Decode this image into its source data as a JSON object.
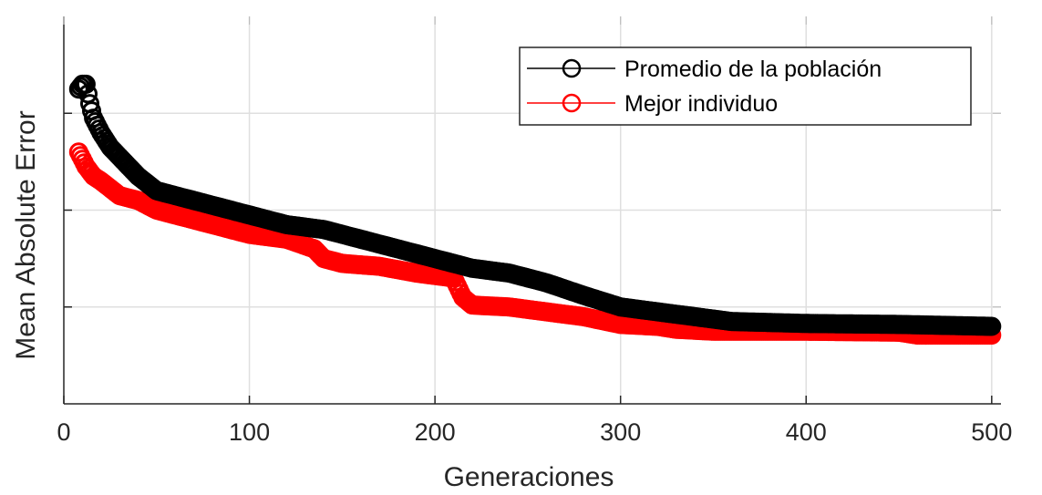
{
  "chart_data": {
    "type": "scatter",
    "title": "",
    "xlabel": "Generaciones",
    "ylabel": "Mean Absolute Error",
    "xlim": [
      0,
      505
    ],
    "ylim": [
      0,
      4
    ],
    "x_ticks": [
      0,
      100,
      200,
      300,
      400,
      500
    ],
    "x_tick_labels": [
      "0",
      "100",
      "200",
      "300",
      "400",
      "500"
    ],
    "y_ticks": [
      1,
      2,
      3
    ],
    "y_tick_labels": [],
    "grid": true,
    "legend_position": "top-right",
    "marker": "circle-open",
    "series": [
      {
        "name": "Promedio de la población",
        "color": "#000000",
        "points": [
          [
            8,
            3.25
          ],
          [
            10,
            3.3
          ],
          [
            12,
            3.3
          ],
          [
            14,
            3.1
          ],
          [
            16,
            2.95
          ],
          [
            20,
            2.8
          ],
          [
            25,
            2.65
          ],
          [
            30,
            2.55
          ],
          [
            40,
            2.35
          ],
          [
            50,
            2.2
          ],
          [
            60,
            2.15
          ],
          [
            80,
            2.05
          ],
          [
            100,
            1.95
          ],
          [
            120,
            1.85
          ],
          [
            140,
            1.8
          ],
          [
            160,
            1.7
          ],
          [
            180,
            1.6
          ],
          [
            200,
            1.5
          ],
          [
            220,
            1.4
          ],
          [
            240,
            1.35
          ],
          [
            260,
            1.25
          ],
          [
            280,
            1.12
          ],
          [
            300,
            1.0
          ],
          [
            320,
            0.95
          ],
          [
            340,
            0.9
          ],
          [
            360,
            0.85
          ],
          [
            400,
            0.83
          ],
          [
            450,
            0.82
          ],
          [
            500,
            0.8
          ]
        ]
      },
      {
        "name": "Mejor individuo",
        "color": "#ff0000",
        "points": [
          [
            8,
            2.6
          ],
          [
            12,
            2.45
          ],
          [
            16,
            2.35
          ],
          [
            20,
            2.3
          ],
          [
            30,
            2.15
          ],
          [
            40,
            2.1
          ],
          [
            50,
            2.0
          ],
          [
            60,
            1.95
          ],
          [
            80,
            1.85
          ],
          [
            100,
            1.75
          ],
          [
            120,
            1.7
          ],
          [
            135,
            1.6
          ],
          [
            140,
            1.5
          ],
          [
            150,
            1.45
          ],
          [
            170,
            1.42
          ],
          [
            190,
            1.35
          ],
          [
            210,
            1.3
          ],
          [
            215,
            1.1
          ],
          [
            220,
            1.02
          ],
          [
            240,
            1.0
          ],
          [
            260,
            0.95
          ],
          [
            280,
            0.9
          ],
          [
            300,
            0.82
          ],
          [
            320,
            0.8
          ],
          [
            330,
            0.77
          ],
          [
            350,
            0.75
          ],
          [
            400,
            0.75
          ],
          [
            450,
            0.74
          ],
          [
            460,
            0.71
          ],
          [
            480,
            0.71
          ],
          [
            500,
            0.71
          ]
        ]
      }
    ]
  }
}
